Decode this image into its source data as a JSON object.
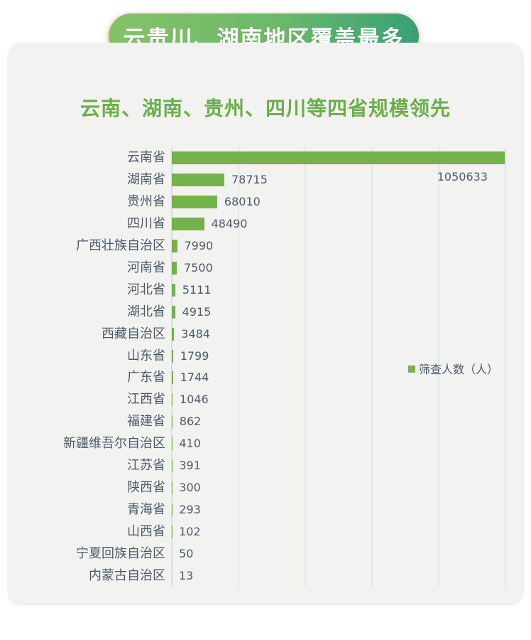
{
  "header": {
    "badge": "云贵川、湖南地区覆盖最多",
    "subtitle": "云南、湖南、贵州、四川等四省规模领先"
  },
  "legend": {
    "label": "筛查人数（人）",
    "marker_color": "#74b24c"
  },
  "chart_data": {
    "type": "bar",
    "orientation": "horizontal",
    "title": "云南、湖南、贵州、四川等四省规模领先",
    "series_name": "筛查人数（人）",
    "categories": [
      "云南省",
      "湖南省",
      "贵州省",
      "四川省",
      "广西壮族自治区",
      "河南省",
      "河北省",
      "湖北省",
      "西藏自治区",
      "山东省",
      "广东省",
      "江西省",
      "福建省",
      "新疆维吾尔自治区",
      "江苏省",
      "陕西省",
      "青海省",
      "山西省",
      "宁夏回族自治区",
      "内蒙古自治区"
    ],
    "values": [
      1050633,
      78715,
      68010,
      48490,
      7990,
      7500,
      5111,
      4915,
      3484,
      1799,
      1744,
      1046,
      862,
      410,
      391,
      300,
      293,
      102,
      50,
      13
    ],
    "value_labels": true,
    "xlim": [
      0,
      500000
    ],
    "gridline_count": 6,
    "grid": "vertical-only",
    "first_bar_clipped_at_axis_max": true,
    "bar_color": "#74b24c",
    "legend_position": "right-middle"
  },
  "colors": {
    "bar_green": "#74b24c",
    "title_green": "#6cae4b",
    "badge_gradient_start": "#85c267",
    "badge_gradient_end": "#36a075",
    "badge_text": "#ffffff",
    "badge_glow": "#e77a6c",
    "label_slate": "#4d5a68",
    "gridline": "#e3e8ef",
    "card_background": "#f2f2f1"
  }
}
